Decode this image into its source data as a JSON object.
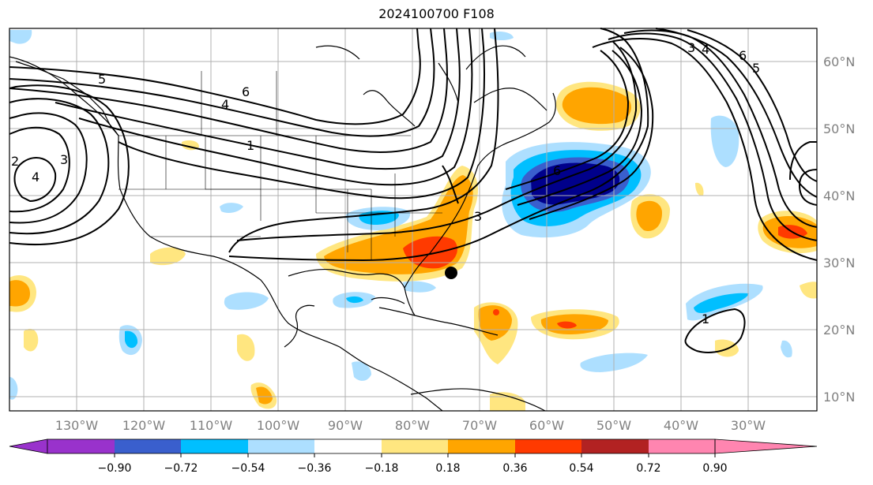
{
  "title": "2024100700 F108",
  "map": {
    "lon_labels": [
      "130°W",
      "120°W",
      "110°W",
      "100°W",
      "90°W",
      "80°W",
      "70°W",
      "60°W",
      "50°W",
      "40°W",
      "30°W"
    ],
    "lat_labels": [
      "60°N",
      "50°N",
      "40°N",
      "30°N",
      "20°N",
      "10°N"
    ],
    "contour_labels": [
      "5",
      "6",
      "4",
      "1",
      "2",
      "4",
      "3",
      "3",
      "6",
      "3",
      "4",
      "6",
      "5",
      "1"
    ],
    "marker": "storm-position-dot"
  },
  "colorbar": {
    "ticks": [
      "−0.90",
      "−0.72",
      "−0.54",
      "−0.36",
      "−0.18",
      "0.18",
      "0.36",
      "0.54",
      "0.72",
      "0.90"
    ],
    "colors": [
      "#9932CC",
      "#00008B",
      "#3A5FCD",
      "#00BFFF",
      "#ADDFFF",
      "#FFFFFF",
      "#FFE680",
      "#FFA500",
      "#FF3A00",
      "#B22222",
      "#FF85B0"
    ]
  }
}
